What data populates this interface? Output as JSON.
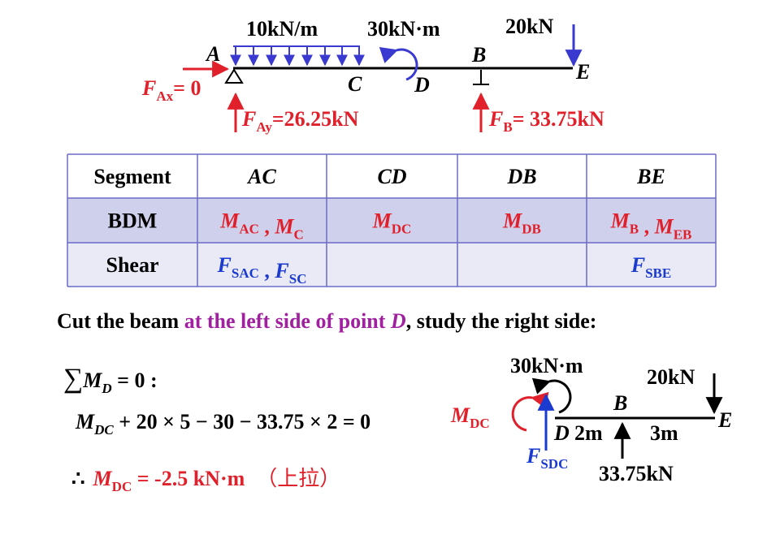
{
  "top_diagram": {
    "loads": [
      "10kN/m",
      "30kN·m",
      "20kN"
    ],
    "points": [
      "A",
      "C",
      "D",
      "B",
      "E"
    ],
    "reactions": [
      {
        "symbol": "F",
        "sub": "Ax",
        "text": "= 0"
      },
      {
        "symbol": "F",
        "sub": "Ay",
        "text": "=26.25kN"
      },
      {
        "symbol": "F",
        "sub": "B",
        "text": "= 33.75kN"
      }
    ]
  },
  "table": {
    "header": [
      "Segment",
      "AC",
      "CD",
      "DB",
      "BE"
    ],
    "rows": [
      {
        "label": "BDM",
        "cells": [
          [
            {
              "text": "M",
              "sub": "AC"
            },
            {
              "text": " , "
            },
            {
              "text": "M",
              "sub": "C"
            }
          ],
          [
            {
              "text": "M",
              "sub": "DC"
            }
          ],
          [
            {
              "text": "M",
              "sub": "DB"
            }
          ],
          [
            {
              "text": "M",
              "sub": "B"
            },
            {
              "text": " , "
            },
            {
              "text": "M",
              "sub": "EB"
            }
          ]
        ]
      },
      {
        "label": "Shear",
        "cells": [
          [
            {
              "text": "F",
              "sub": "SAC"
            },
            {
              "text": " , "
            },
            {
              "text": "F",
              "sub": "SC"
            }
          ],
          [],
          [],
          [
            {
              "text": "F",
              "sub": "SBE"
            }
          ]
        ]
      }
    ]
  },
  "statement": [
    "Cut the beam ",
    "at the left side of point ",
    "D",
    ", study the right side:"
  ],
  "equations": {
    "sum": {
      "sigma": "∑",
      "symbol": "M",
      "sub": "D",
      "text": " = 0 :"
    },
    "balance": {
      "symbol": "M",
      "sub": "DC",
      "text": " + 20 × 5 − 30 − 33.75 × 2 = 0"
    },
    "result": {
      "therefore": "∴",
      "symbol": "M",
      "sub": "DC",
      "text": " = -2.5 kN·m",
      "note": "（上拉）"
    }
  },
  "right_diagram": {
    "loads": [
      "30kN·m",
      "20kN"
    ],
    "points": [
      "B",
      "E",
      "D"
    ],
    "lengths": [
      "2m",
      "3m"
    ],
    "reaction": "33.75kN",
    "moment": {
      "symbol": "M",
      "sub": "DC"
    },
    "shear": {
      "symbol": "F",
      "sub": "SDC"
    }
  }
}
